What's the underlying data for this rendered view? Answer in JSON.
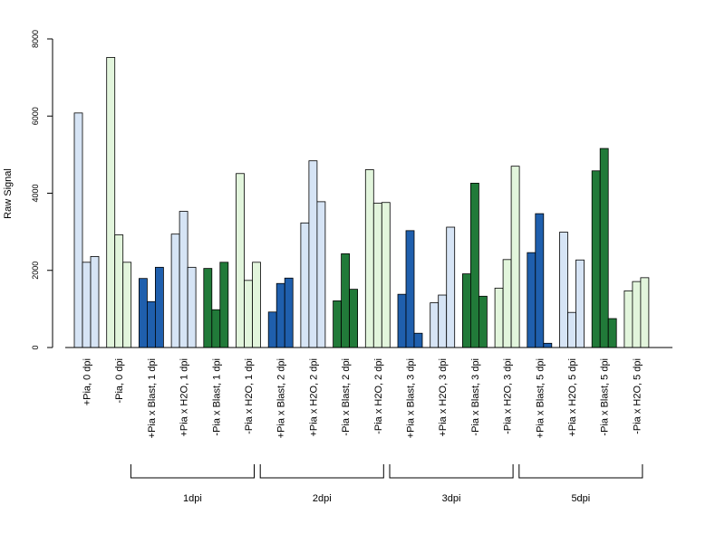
{
  "chart_data": {
    "type": "bar",
    "ylabel": "Raw Signal",
    "ylim": [
      0,
      8000
    ],
    "yticks": [
      0,
      2000,
      4000,
      6000,
      8000
    ],
    "colors": {
      "light_blue": "#d6e4f5",
      "dark_blue": "#1f5fad",
      "dark_green": "#217a39",
      "light_green": "#e2f5dc"
    },
    "categories": [
      {
        "label": "+Pia, 0 dpi",
        "color": "light_blue",
        "values": [
          6080,
          2210,
          2360
        ]
      },
      {
        "label": "-Pia, 0 dpi",
        "color": "light_green",
        "values": [
          7520,
          2920,
          2210
        ]
      },
      {
        "label": "+Pia x Blast, 1 dpi",
        "color": "dark_blue",
        "values": [
          1790,
          1190,
          2080
        ]
      },
      {
        "label": "+Pia x H2O, 1 dpi",
        "color": "light_blue",
        "values": [
          2940,
          3530,
          2080
        ]
      },
      {
        "label": "-Pia x Blast, 1 dpi",
        "color": "dark_green",
        "values": [
          2050,
          980,
          2210
        ]
      },
      {
        "label": "-Pia x H2O, 1 dpi",
        "color": "light_green",
        "values": [
          4510,
          1740,
          2210
        ]
      },
      {
        "label": "+Pia x Blast, 2 dpi",
        "color": "dark_blue",
        "values": [
          920,
          1660,
          1800
        ]
      },
      {
        "label": "+Pia x H2O, 2 dpi",
        "color": "light_blue",
        "values": [
          3230,
          4840,
          3780
        ]
      },
      {
        "label": "-Pia x Blast, 2 dpi",
        "color": "dark_green",
        "values": [
          1210,
          2430,
          1510
        ]
      },
      {
        "label": "-Pia x H2O, 2 dpi",
        "color": "light_green",
        "values": [
          4610,
          3740,
          3760
        ]
      },
      {
        "label": "+Pia x Blast, 3 dpi",
        "color": "dark_blue",
        "values": [
          1380,
          3030,
          370
        ]
      },
      {
        "label": "+Pia x H2O, 3 dpi",
        "color": "light_blue",
        "values": [
          1160,
          1360,
          3120
        ]
      },
      {
        "label": "-Pia x Blast, 3 dpi",
        "color": "dark_green",
        "values": [
          1910,
          4260,
          1330
        ]
      },
      {
        "label": "-Pia x H2O, 3 dpi",
        "color": "light_green",
        "values": [
          1540,
          2280,
          4700
        ]
      },
      {
        "label": "+Pia x Blast, 5 dpi",
        "color": "dark_blue",
        "values": [
          2460,
          3470,
          110
        ]
      },
      {
        "label": "+Pia x H2O, 5 dpi",
        "color": "light_blue",
        "values": [
          2990,
          910,
          2270
        ]
      },
      {
        "label": "-Pia x Blast, 5 dpi",
        "color": "dark_green",
        "values": [
          4580,
          5160,
          750
        ]
      },
      {
        "label": "-Pia x H2O, 5 dpi",
        "color": "light_green",
        "values": [
          1470,
          1710,
          1810
        ]
      }
    ],
    "groups": [
      {
        "label": "1dpi",
        "from": 2,
        "to": 5
      },
      {
        "label": "2dpi",
        "from": 6,
        "to": 9
      },
      {
        "label": "3dpi",
        "from": 10,
        "to": 13
      },
      {
        "label": "5dpi",
        "from": 14,
        "to": 17
      }
    ]
  }
}
